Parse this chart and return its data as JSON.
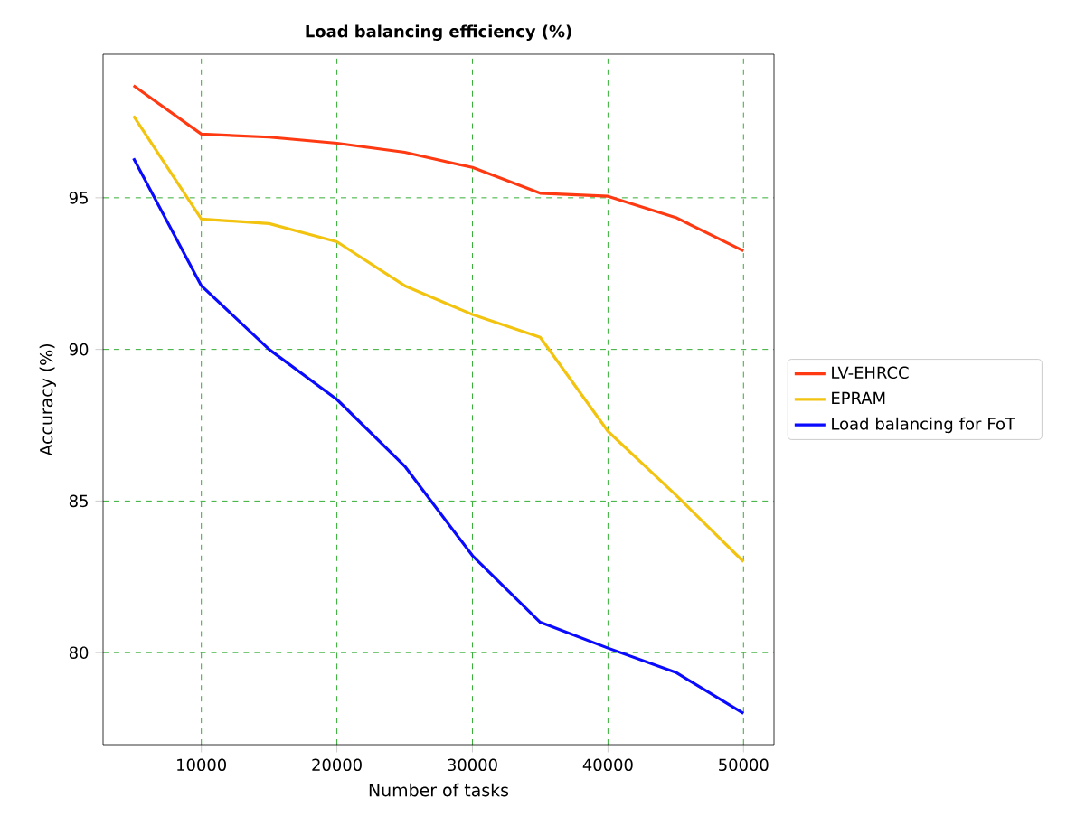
{
  "chart_data": {
    "type": "line",
    "title": "**Load balancing efficiency (%)**",
    "xlabel": "Number of tasks",
    "ylabel": "Accuracy (%)",
    "x": [
      5000,
      10000,
      15000,
      20000,
      25000,
      30000,
      35000,
      40000,
      45000,
      50000
    ],
    "series": [
      {
        "name": "LV-EHRCC",
        "color": "#ff3a12",
        "values": [
          98.7,
          97.1,
          97.0,
          96.8,
          96.5,
          96.0,
          95.15,
          95.05,
          94.35,
          93.25
        ]
      },
      {
        "name": "EPRAM",
        "color": "#f2c30f",
        "values": [
          97.7,
          94.3,
          94.15,
          93.55,
          92.1,
          91.15,
          90.4,
          87.3,
          85.2,
          83.0
        ]
      },
      {
        "name": "Load balancing for FoT",
        "color": "#0a0aff",
        "values": [
          96.3,
          92.1,
          90.0,
          88.35,
          86.15,
          83.2,
          81.0,
          80.15,
          79.35,
          78.0
        ]
      }
    ],
    "xlim": [
      2750,
      52250
    ],
    "ylim": [
      76.965,
      99.735
    ],
    "xticks": [
      10000,
      20000,
      30000,
      40000,
      50000
    ],
    "yticks": [
      80,
      85,
      90,
      95
    ],
    "grid": true,
    "legend": "right",
    "marker": "none",
    "line_style": "solid"
  }
}
